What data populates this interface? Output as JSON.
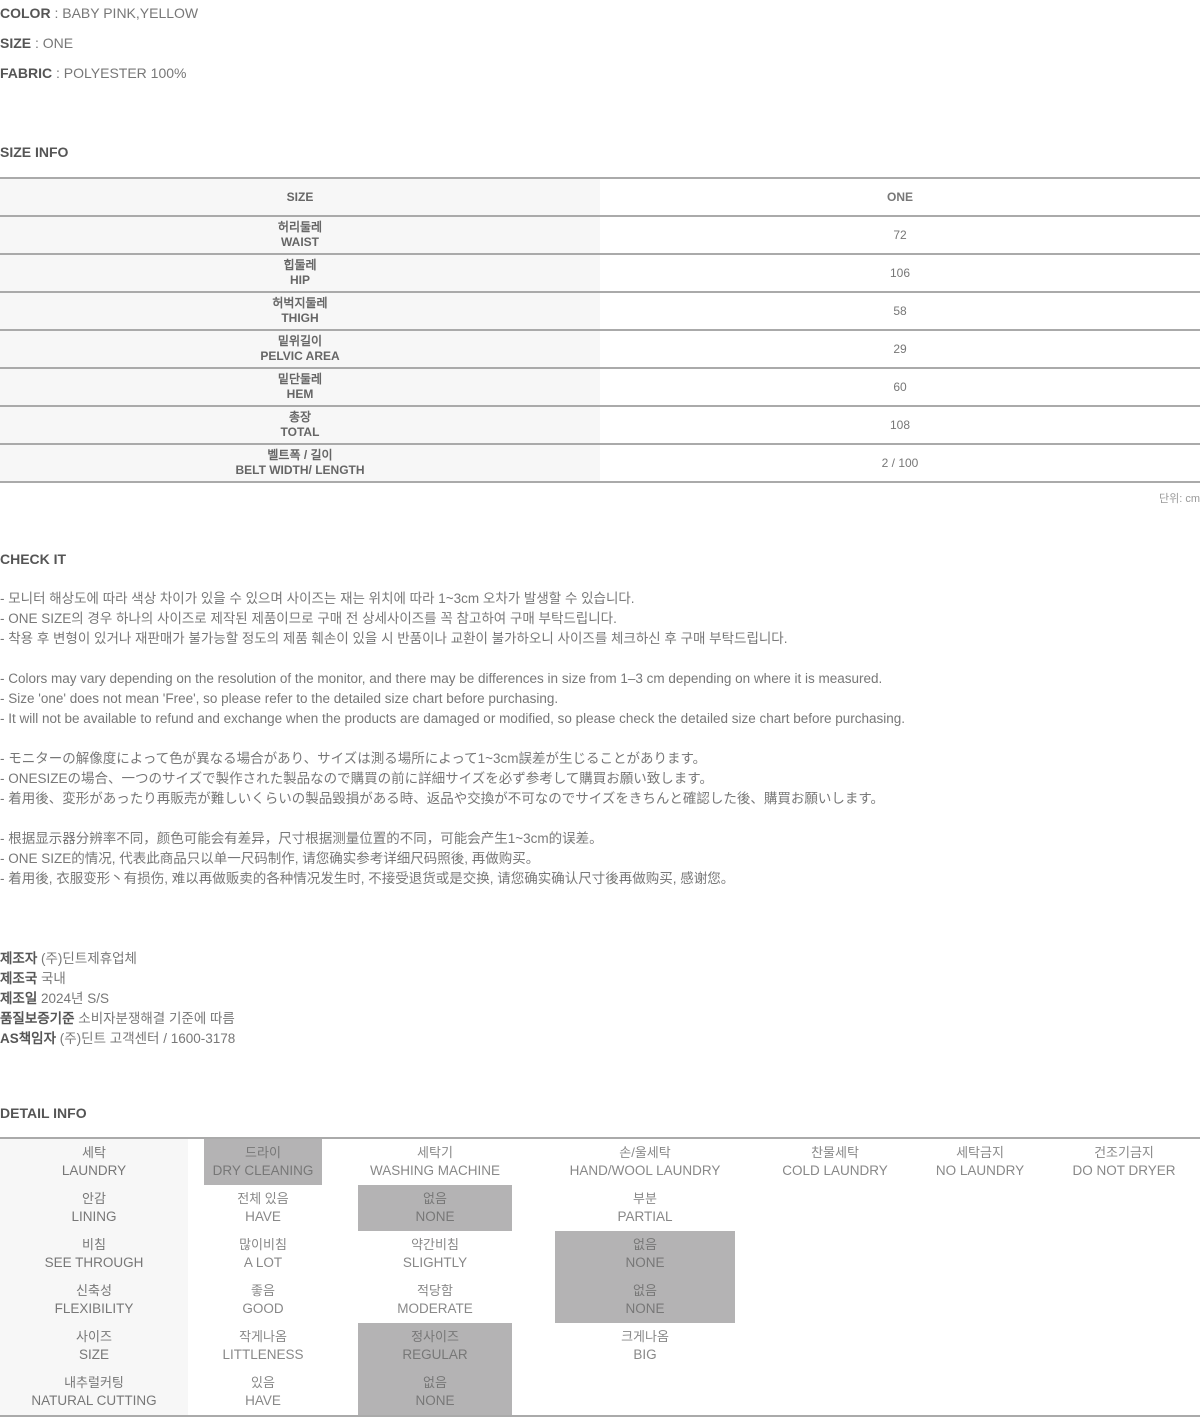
{
  "specs": [
    {
      "key": "COLOR",
      "value": " : BABY PINK,YELLOW"
    },
    {
      "key": "SIZE",
      "value": " : ONE"
    },
    {
      "key": "FABRIC",
      "value": " : POLYESTER 100%"
    }
  ],
  "size_info": {
    "title": "SIZE INFO",
    "header": {
      "label": "SIZE",
      "value": "ONE"
    },
    "rows": [
      {
        "kr": "허리둘레",
        "en": "WAIST",
        "value": "72"
      },
      {
        "kr": "힙둘레",
        "en": "HIP",
        "value": "106"
      },
      {
        "kr": "허벅지둘레",
        "en": "THIGH",
        "value": "58"
      },
      {
        "kr": "밑위길이",
        "en": "PELVIC AREA",
        "value": "29"
      },
      {
        "kr": "밑단둘레",
        "en": "HEM",
        "value": "60"
      },
      {
        "kr": "총장",
        "en": "TOTAL",
        "value": "108"
      },
      {
        "kr": "벨트폭 / 길이",
        "en": "BELT WIDTH/ LENGTH",
        "value": "2 / 100"
      }
    ],
    "unit": "단위: cm"
  },
  "check_it": {
    "title": "CHECK IT",
    "groups": [
      [
        "- 모니터 해상도에 따라 색상 차이가 있을 수 있으며 사이즈는 재는 위치에 따라 1~3cm 오차가 발생할 수 있습니다.",
        "- ONE SIZE의 경우 하나의 사이즈로 제작된 제품이므로 구매 전 상세사이즈를 꼭 참고하여 구매 부탁드립니다.",
        "- 착용 후 변형이 있거나 재판매가 불가능할 정도의 제품 훼손이 있을 시 반품이나 교환이 불가하오니 사이즈를 체크하신 후 구매 부탁드립니다."
      ],
      [
        "- Colors may vary depending on the resolution of the monitor, and there may be differences in size from 1–3 cm depending on where it is measured.",
        "- Size 'one' does not mean 'Free', so please refer to the detailed size chart before purchasing.",
        "- It will not be available to refund and exchange when the products are damaged or modified, so please check the detailed size chart before purchasing."
      ],
      [
        "- モニターの解像度によって色が異なる場合があり、サイズは測る場所によって1~3cm誤差が生じることがあります。",
        "- ONESIZEの場合、一つのサイズで製作された製品なので購買の前に詳細サイズを必ず参考して購買お願い致します。",
        "- 着用後、変形があったり再販売が難しいくらいの製品毀損がある時、返品や交換が不可なのでサイズをきちんと確認した後、購買お願いします。"
      ],
      [
        "- 根据显示器分辨率不同，颜色可能会有差异，尺寸根据测量位置的不同，可能会产生1~3cm的误差。",
        "- ONE SIZE的情况, 代表此商品只以单一尺码制作, 请您确实参考详细尺码照後, 再做购买。",
        "- 着用後, 衣服变形丶有损伤, 难以再做贩卖的各种情况发生时, 不接受退货或是交换, 请您确实确认尺寸後再做购买, 感谢您。"
      ]
    ]
  },
  "maker_info": [
    {
      "key": "제조자",
      "value": " (주)딘트제휴업체"
    },
    {
      "key": "제조국",
      "value": " 국내"
    },
    {
      "key": "제조일",
      "value": " 2024년 S/S"
    },
    {
      "key": "품질보증기준",
      "value": " 소비자분쟁해결 기준에 따름"
    },
    {
      "key": "AS책임자",
      "value": " (주)딘트 고객센터 / 1600-3178"
    }
  ],
  "detail_info": {
    "title": "DETAIL INFO",
    "highlight_color": "#b4b3b4",
    "rows": [
      {
        "label": {
          "kr": "세탁",
          "en": "LAUNDRY"
        },
        "options": [
          {
            "kr": "드라이",
            "en": "DRY CLEANING",
            "selected": true
          },
          {
            "kr": "세탁기",
            "en": "WASHING MACHINE",
            "selected": false
          },
          {
            "kr": "손/울세탁",
            "en": "HAND/WOOL LAUNDRY",
            "selected": false
          },
          {
            "kr": "찬물세탁",
            "en": "COLD LAUNDRY",
            "selected": false
          },
          {
            "kr": "세탁금지",
            "en": "NO LAUNDRY",
            "selected": false
          },
          {
            "kr": "건조기금지",
            "en": "DO NOT DRYER",
            "selected": false
          }
        ]
      },
      {
        "label": {
          "kr": "안감",
          "en": "LINING"
        },
        "options": [
          {
            "kr": "전체 있음",
            "en": "HAVE",
            "selected": false
          },
          {
            "kr": "없음",
            "en": "NONE",
            "selected": true
          },
          {
            "kr": "부분",
            "en": "PARTIAL",
            "selected": false
          }
        ]
      },
      {
        "label": {
          "kr": "비침",
          "en": "SEE THROUGH"
        },
        "options": [
          {
            "kr": "많이비침",
            "en": "A LOT",
            "selected": false
          },
          {
            "kr": "약간비침",
            "en": "SLIGHTLY",
            "selected": false
          },
          {
            "kr": "없음",
            "en": "NONE",
            "selected": true
          }
        ]
      },
      {
        "label": {
          "kr": "신축성",
          "en": "FLEXIBILITY"
        },
        "options": [
          {
            "kr": "좋음",
            "en": "GOOD",
            "selected": false
          },
          {
            "kr": "적당함",
            "en": "MODERATE",
            "selected": false
          },
          {
            "kr": "없음",
            "en": "NONE",
            "selected": true
          }
        ]
      },
      {
        "label": {
          "kr": "사이즈",
          "en": "SIZE"
        },
        "options": [
          {
            "kr": "작게나옴",
            "en": "LITTLENESS",
            "selected": false
          },
          {
            "kr": "정사이즈",
            "en": "REGULAR",
            "selected": true
          },
          {
            "kr": "크게나옴",
            "en": "BIG",
            "selected": false
          }
        ]
      },
      {
        "label": {
          "kr": "내추럴커팅",
          "en": "NATURAL CUTTING"
        },
        "options": [
          {
            "kr": "있음",
            "en": "HAVE",
            "selected": false
          },
          {
            "kr": "없음",
            "en": "NONE",
            "selected": true
          }
        ]
      }
    ]
  }
}
